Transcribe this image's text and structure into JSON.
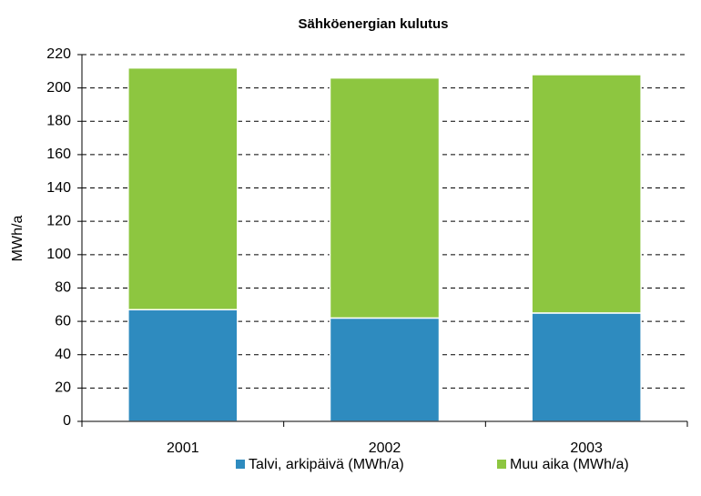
{
  "chart_data": {
    "type": "stacked_bar",
    "title": "Sähköenergian kulutus",
    "y_label": "MWh/a",
    "categories": [
      "2001",
      "2002",
      "2003"
    ],
    "series": [
      {
        "name": "Talvi, arkipäivä (MWh/a)",
        "color": "#2e8bbf",
        "values": [
          67,
          62,
          65
        ]
      },
      {
        "name": "Muu aika (MWh/a)",
        "color": "#8dc640",
        "values": [
          145,
          144,
          143
        ]
      }
    ],
    "ylim": [
      0,
      220
    ],
    "yticks": [
      0,
      20,
      40,
      60,
      80,
      100,
      120,
      140,
      160,
      180,
      200,
      220
    ],
    "grid": true,
    "legend": "bottom"
  }
}
